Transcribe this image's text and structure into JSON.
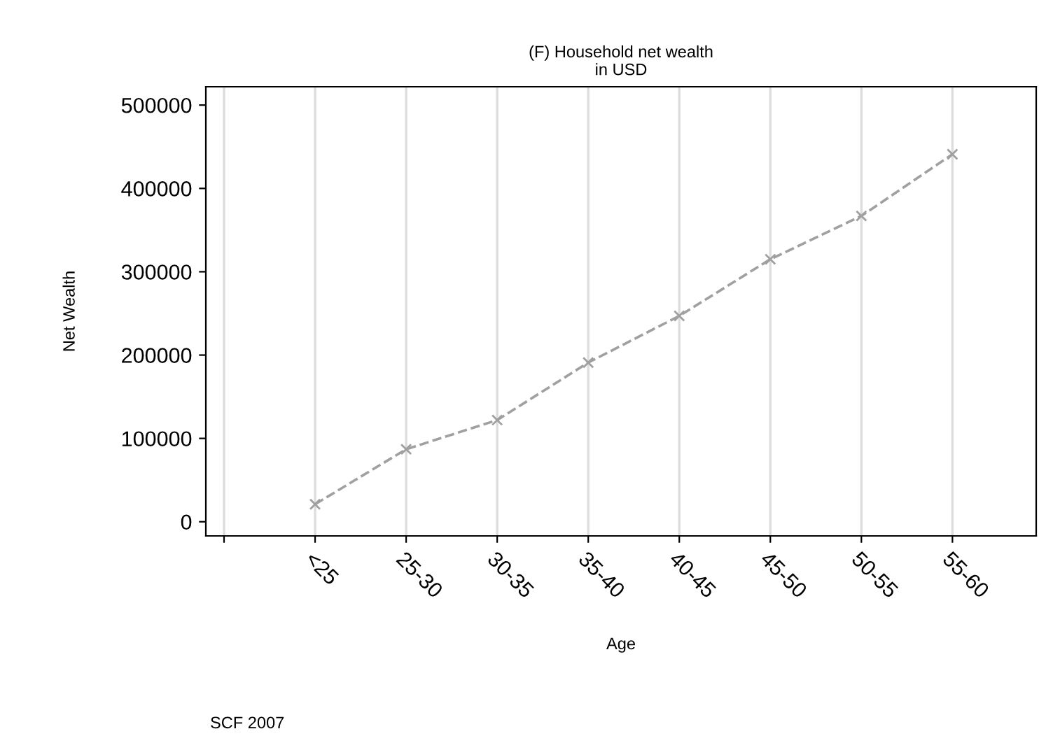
{
  "chart_data": {
    "type": "line",
    "title": "(F) Household net wealth\nin USD",
    "xlabel": "Age",
    "ylabel": "Net Wealth",
    "categories": [
      null,
      "<25",
      "25-30",
      "30-35",
      "35-40",
      "40-45",
      "45-50",
      "50-55",
      "55-60"
    ],
    "series": [
      {
        "color": "#a0a0a0",
        "values": [
          null,
          21000,
          87000,
          122000,
          191000,
          247000,
          315000,
          367000,
          441000
        ]
      }
    ],
    "ylim": [
      -17000,
      522000
    ],
    "yticks": [
      0,
      100000,
      200000,
      300000,
      400000,
      500000
    ],
    "grid": "x",
    "marker": "cross",
    "line_style": "dashed",
    "annotations": [
      "SCF 2007"
    ]
  }
}
